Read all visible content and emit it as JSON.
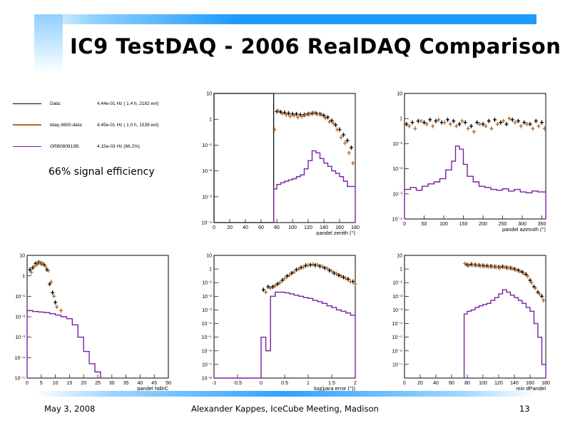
{
  "slide": {
    "title": "IC9 TestDAQ - 2006 RealDAQ Comparison",
    "annotation": "66% signal efficiency",
    "footer": {
      "date": "May 3, 2008",
      "presenter": "Alexander Kappes, IceCube Meeting, Madison",
      "page": "13"
    }
  },
  "legend": {
    "entries": [
      {
        "name": "Data:",
        "value": "4.44e-01 Hz ( 1.4 h, 2182 evt)",
        "color": "#000000",
        "style": "line"
      },
      {
        "name": "tdaq-3600-data:",
        "value": "4.45e-01 Hz ( 1.0 h, 1539 evt)",
        "color": "#b5651d",
        "style": "line-with-markers"
      },
      {
        "name": "GRB080913B:",
        "value": "4.15e-03 Hz (66.2%)",
        "color": "#7b1fa2",
        "style": "line"
      }
    ]
  },
  "colors": {
    "data": "#000000",
    "tdaq": "#b5651d",
    "signal": "#7b1fa2",
    "title_bar": "#1e9bff"
  },
  "chart_data": [
    {
      "type": "line",
      "xlabel": "pandel zenith (°)",
      "xlim": [
        0,
        180
      ],
      "ylim": [
        0.0001,
        10
      ],
      "log_y": true,
      "xticks": [
        0,
        20,
        40,
        60,
        80,
        100,
        120,
        140,
        160,
        180
      ],
      "yticks": [
        {
          "v": 10,
          "l": "10"
        },
        {
          "v": 1,
          "l": "1"
        },
        {
          "v": 0.1,
          "l": "10⁻¹"
        },
        {
          "v": 0.01,
          "l": "10⁻²"
        },
        {
          "v": 0.001,
          "l": "10⁻³"
        },
        {
          "v": 0.0001,
          "l": "10⁻⁴"
        }
      ],
      "cut_box": {
        "x": [
          0,
          76
        ]
      },
      "series": [
        {
          "name": "Data",
          "kind": "points",
          "x": [
            80,
            85,
            90,
            95,
            100,
            105,
            110,
            115,
            120,
            125,
            130,
            135,
            140,
            145,
            150,
            155,
            160,
            165,
            170,
            175
          ],
          "values": [
            2.0,
            1.9,
            1.8,
            1.7,
            1.6,
            1.6,
            1.5,
            1.5,
            1.6,
            1.7,
            1.7,
            1.6,
            1.4,
            1.2,
            0.9,
            0.6,
            0.4,
            0.25,
            0.15,
            0.08
          ]
        },
        {
          "name": "tdaq-3600-data",
          "kind": "points",
          "x": [
            77,
            82,
            87,
            92,
            97,
            102,
            107,
            112,
            117,
            122,
            127,
            132,
            137,
            142,
            147,
            152,
            157,
            162,
            167,
            172,
            177
          ],
          "values": [
            0.4,
            2.1,
            1.7,
            1.5,
            1.3,
            1.4,
            1.2,
            1.3,
            1.5,
            1.6,
            1.8,
            1.6,
            1.5,
            1.1,
            0.8,
            0.7,
            0.4,
            0.2,
            0.12,
            0.05,
            0.02
          ]
        },
        {
          "name": "GRB080913B",
          "kind": "hist",
          "edges": [
            76,
            80,
            85,
            90,
            95,
            100,
            105,
            110,
            115,
            120,
            125,
            130,
            135,
            140,
            145,
            150,
            155,
            160,
            165,
            170,
            175,
            180
          ],
          "values": [
            0.002,
            0.003,
            0.0035,
            0.004,
            0.0045,
            0.005,
            0.006,
            0.007,
            0.012,
            0.025,
            0.06,
            0.05,
            0.03,
            0.02,
            0.015,
            0.01,
            0.008,
            0.006,
            0.004,
            0.0025,
            0.0025
          ]
        }
      ]
    },
    {
      "type": "line",
      "xlabel": "pandel azimuth (°)",
      "xlim": [
        0,
        360
      ],
      "ylim": [
        0.0001,
        10
      ],
      "log_y": true,
      "xticks": [
        0,
        50,
        100,
        150,
        200,
        250,
        300,
        350
      ],
      "yticks": [
        {
          "v": 10,
          "l": "10"
        },
        {
          "v": 1,
          "l": "1"
        },
        {
          "v": 0.1,
          "l": "10⁻¹"
        },
        {
          "v": 0.01,
          "l": "10⁻²"
        },
        {
          "v": 0.001,
          "l": "10⁻³"
        },
        {
          "v": 0.0001,
          "l": "10⁻⁴"
        }
      ],
      "series": [
        {
          "name": "Data",
          "kind": "points",
          "x": [
            5,
            20,
            35,
            50,
            65,
            80,
            95,
            110,
            125,
            140,
            155,
            170,
            185,
            200,
            215,
            230,
            245,
            260,
            275,
            290,
            305,
            320,
            335,
            350
          ],
          "values": [
            0.6,
            0.7,
            0.8,
            0.7,
            0.9,
            0.8,
            0.7,
            0.9,
            0.8,
            0.6,
            0.7,
            0.5,
            0.7,
            0.6,
            0.8,
            0.9,
            0.7,
            0.6,
            0.9,
            0.8,
            0.7,
            0.6,
            0.8,
            0.7
          ]
        },
        {
          "name": "tdaq-3600-data",
          "kind": "points",
          "x": [
            12,
            27,
            42,
            57,
            72,
            87,
            102,
            117,
            132,
            147,
            162,
            177,
            192,
            207,
            222,
            237,
            252,
            267,
            282,
            297,
            312,
            327,
            342,
            357
          ],
          "values": [
            0.5,
            0.4,
            0.8,
            0.6,
            0.5,
            0.9,
            0.7,
            0.6,
            0.5,
            0.8,
            0.4,
            0.3,
            0.6,
            0.5,
            0.4,
            0.6,
            0.8,
            1.0,
            0.7,
            0.5,
            0.6,
            0.4,
            0.5,
            0.4
          ]
        },
        {
          "name": "GRB080913B",
          "kind": "hist",
          "edges": [
            0,
            15,
            30,
            45,
            60,
            75,
            90,
            105,
            120,
            130,
            140,
            150,
            160,
            175,
            190,
            205,
            220,
            235,
            250,
            265,
            280,
            295,
            310,
            325,
            340,
            360
          ],
          "values": [
            0.0015,
            0.0018,
            0.0014,
            0.002,
            0.0025,
            0.003,
            0.004,
            0.009,
            0.02,
            0.08,
            0.06,
            0.015,
            0.005,
            0.003,
            0.002,
            0.0018,
            0.0015,
            0.0014,
            0.0016,
            0.0013,
            0.0015,
            0.0012,
            0.0011,
            0.0013,
            0.0012
          ]
        }
      ]
    },
    {
      "type": "line",
      "xlabel": "pandel NdirC",
      "xlim": [
        0,
        50
      ],
      "ylim": [
        1e-05,
        10
      ],
      "log_y": true,
      "xticks": [
        0,
        5,
        10,
        15,
        20,
        25,
        30,
        35,
        40,
        45,
        50
      ],
      "yticks": [
        {
          "v": 10,
          "l": "10"
        },
        {
          "v": 1,
          "l": "1"
        },
        {
          "v": 0.1,
          "l": "10⁻¹"
        },
        {
          "v": 0.01,
          "l": "10⁻²"
        },
        {
          "v": 0.001,
          "l": "10⁻³"
        },
        {
          "v": 0.0001,
          "l": "10⁻⁴"
        },
        {
          "v": 1e-05,
          "l": "10⁻⁵"
        }
      ],
      "series": [
        {
          "name": "Data",
          "kind": "points",
          "x": [
            1,
            2,
            3,
            4,
            5,
            6,
            7,
            8,
            9,
            10
          ],
          "values": [
            2.0,
            2.5,
            4.0,
            4.5,
            4.0,
            3.5,
            2.0,
            0.4,
            0.15,
            0.05
          ]
        },
        {
          "name": "tdaq-3600-data",
          "kind": "points",
          "x": [
            1.5,
            2.5,
            3.5,
            4.5,
            5.5,
            6.5,
            7.5,
            8.5,
            9.5,
            10.5,
            12
          ],
          "values": [
            1.5,
            2.8,
            3.5,
            4.5,
            4.0,
            3.0,
            1.8,
            0.5,
            0.1,
            0.03,
            0.02
          ]
        },
        {
          "name": "GRB080913B",
          "kind": "hist",
          "edges": [
            0,
            2,
            4,
            6,
            8,
            10,
            12,
            14,
            16,
            18,
            20,
            22,
            24,
            26
          ],
          "values": [
            0.02,
            0.018,
            0.017,
            0.016,
            0.014,
            0.012,
            0.01,
            0.008,
            0.004,
            0.001,
            0.0002,
            5e-05,
            2e-05
          ]
        }
      ]
    },
    {
      "type": "line",
      "xlabel": "log(para error (°))",
      "xlim": [
        -1,
        2
      ],
      "ylim": [
        1e-08,
        10
      ],
      "log_y": true,
      "xticks": [
        -1,
        -0.5,
        0,
        0.5,
        1,
        1.5,
        2
      ],
      "yticks": [
        {
          "v": 10,
          "l": "10"
        },
        {
          "v": 1,
          "l": "1"
        },
        {
          "v": 0.1,
          "l": "10⁻¹"
        },
        {
          "v": 0.01,
          "l": "10⁻²"
        },
        {
          "v": 0.001,
          "l": "10⁻³"
        },
        {
          "v": 0.0001,
          "l": "10⁻⁴"
        },
        {
          "v": 1e-05,
          "l": "10⁻⁵"
        },
        {
          "v": 1e-06,
          "l": "10⁻⁶"
        },
        {
          "v": 1e-07,
          "l": "10⁻⁷"
        },
        {
          "v": 1e-08,
          "l": "10⁻⁸"
        }
      ],
      "series": [
        {
          "name": "Data",
          "kind": "points",
          "x": [
            0.05,
            0.15,
            0.25,
            0.35,
            0.45,
            0.55,
            0.65,
            0.75,
            0.85,
            0.95,
            1.05,
            1.15,
            1.25,
            1.35,
            1.45,
            1.55,
            1.65,
            1.75,
            1.85,
            1.95
          ],
          "values": [
            0.03,
            0.05,
            0.05,
            0.08,
            0.15,
            0.3,
            0.5,
            0.9,
            1.3,
            1.8,
            2.0,
            1.9,
            1.6,
            1.2,
            0.8,
            0.5,
            0.35,
            0.25,
            0.18,
            0.12
          ]
        },
        {
          "name": "tdaq-3600-data",
          "kind": "points",
          "x": [
            0.1,
            0.2,
            0.3,
            0.4,
            0.5,
            0.6,
            0.7,
            0.8,
            0.9,
            1.0,
            1.1,
            1.2,
            1.3,
            1.4,
            1.5,
            1.6,
            1.7,
            1.8,
            1.9,
            2.0
          ],
          "values": [
            0.02,
            0.04,
            0.06,
            0.1,
            0.2,
            0.35,
            0.6,
            1.0,
            1.4,
            1.9,
            2.2,
            2.0,
            1.5,
            1.1,
            0.7,
            0.45,
            0.3,
            0.2,
            0.12,
            0.08
          ]
        },
        {
          "name": "GRB080913B",
          "kind": "hist",
          "edges": [
            -1,
            0.0,
            0.1,
            0.2,
            0.3,
            0.4,
            0.5,
            0.6,
            0.7,
            0.8,
            0.9,
            1.0,
            1.1,
            1.2,
            1.3,
            1.4,
            1.5,
            1.6,
            1.7,
            1.8,
            1.9,
            2.0
          ],
          "values": [
            1e-08,
            1e-05,
            1e-06,
            0.01,
            0.02,
            0.02,
            0.018,
            0.015,
            0.012,
            0.01,
            0.008,
            0.007,
            0.005,
            0.004,
            0.003,
            0.002,
            0.0015,
            0.001,
            0.0008,
            0.0006,
            0.0004
          ]
        }
      ]
    },
    {
      "type": "line",
      "xlabel": "min dPandel",
      "xlim": [
        0,
        180
      ],
      "ylim": [
        1e-08,
        10
      ],
      "log_y": true,
      "xticks": [
        0,
        20,
        40,
        60,
        80,
        100,
        120,
        140,
        160,
        180
      ],
      "yticks": [
        {
          "v": 10,
          "l": "10"
        },
        {
          "v": 1,
          "l": "1"
        },
        {
          "v": 0.1,
          "l": "10⁻¹"
        },
        {
          "v": 0.01,
          "l": "10⁻²"
        },
        {
          "v": 0.001,
          "l": "10⁻³"
        },
        {
          "v": 0.0001,
          "l": "10⁻⁴"
        },
        {
          "v": 1e-05,
          "l": "10⁻⁵"
        },
        {
          "v": 1e-06,
          "l": "10⁻⁶"
        },
        {
          "v": 1e-07,
          "l": "10⁻⁷"
        }
      ],
      "series": [
        {
          "name": "Data",
          "kind": "points",
          "x": [
            80,
            85,
            90,
            95,
            100,
            105,
            110,
            115,
            120,
            125,
            130,
            135,
            140,
            145,
            150,
            155,
            160,
            165,
            170,
            175
          ],
          "values": [
            2.0,
            2.2,
            2.0,
            1.9,
            1.8,
            1.7,
            1.6,
            1.5,
            1.4,
            1.5,
            1.3,
            1.2,
            1.0,
            0.8,
            0.6,
            0.4,
            0.15,
            0.05,
            0.02,
            0.01
          ]
        },
        {
          "name": "tdaq-3600-data",
          "kind": "points",
          "x": [
            77,
            82,
            87,
            92,
            97,
            102,
            107,
            112,
            117,
            122,
            127,
            132,
            137,
            142,
            147,
            152,
            157,
            162,
            167,
            172,
            177
          ],
          "values": [
            2.5,
            1.8,
            2.0,
            1.8,
            1.7,
            1.6,
            1.5,
            1.5,
            1.4,
            1.3,
            1.4,
            1.2,
            1.1,
            0.9,
            0.7,
            0.5,
            0.3,
            0.1,
            0.04,
            0.015,
            0.005
          ]
        },
        {
          "name": "GRB080913B",
          "kind": "hist",
          "edges": [
            76,
            80,
            85,
            90,
            95,
            100,
            105,
            110,
            115,
            120,
            125,
            130,
            135,
            140,
            145,
            150,
            155,
            160,
            165,
            170,
            175,
            180
          ],
          "values": [
            0.0005,
            0.0008,
            0.001,
            0.0015,
            0.002,
            0.0025,
            0.003,
            0.005,
            0.008,
            0.015,
            0.03,
            0.02,
            0.012,
            0.008,
            0.005,
            0.003,
            0.0015,
            0.0008,
            0.0001,
            1e-05,
            1e-07
          ]
        }
      ]
    }
  ]
}
